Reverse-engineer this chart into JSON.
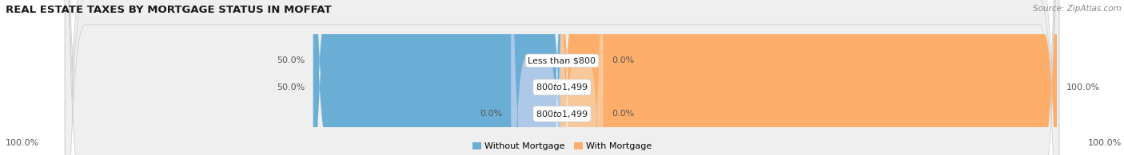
{
  "title": "REAL ESTATE TAXES BY MORTGAGE STATUS IN MOFFAT",
  "source": "Source: ZipAtlas.com",
  "rows": [
    {
      "label": "Less than $800",
      "without_mortgage": 50.0,
      "with_mortgage": 0.0,
      "wm_small": false,
      "wth_small": true
    },
    {
      "label": "$800 to $1,499",
      "without_mortgage": 50.0,
      "with_mortgage": 100.0,
      "wm_small": false,
      "wth_small": false
    },
    {
      "label": "$800 to $1,499",
      "without_mortgage": 0.0,
      "with_mortgage": 0.0,
      "wm_small": true,
      "wth_small": true
    }
  ],
  "color_without": "#6aaed6",
  "color_with": "#fdae6b",
  "color_without_light": "#aec8e8",
  "color_with_light": "#f8c89a",
  "row_bg": "#efefef",
  "bottom_left_label": "100.0%",
  "bottom_right_label": "100.0%",
  "legend_without": "Without Mortgage",
  "legend_with": "With Mortgage",
  "title_fontsize": 9.5,
  "source_fontsize": 7.5,
  "label_fontsize": 8,
  "figsize": [
    14.06,
    1.95
  ]
}
